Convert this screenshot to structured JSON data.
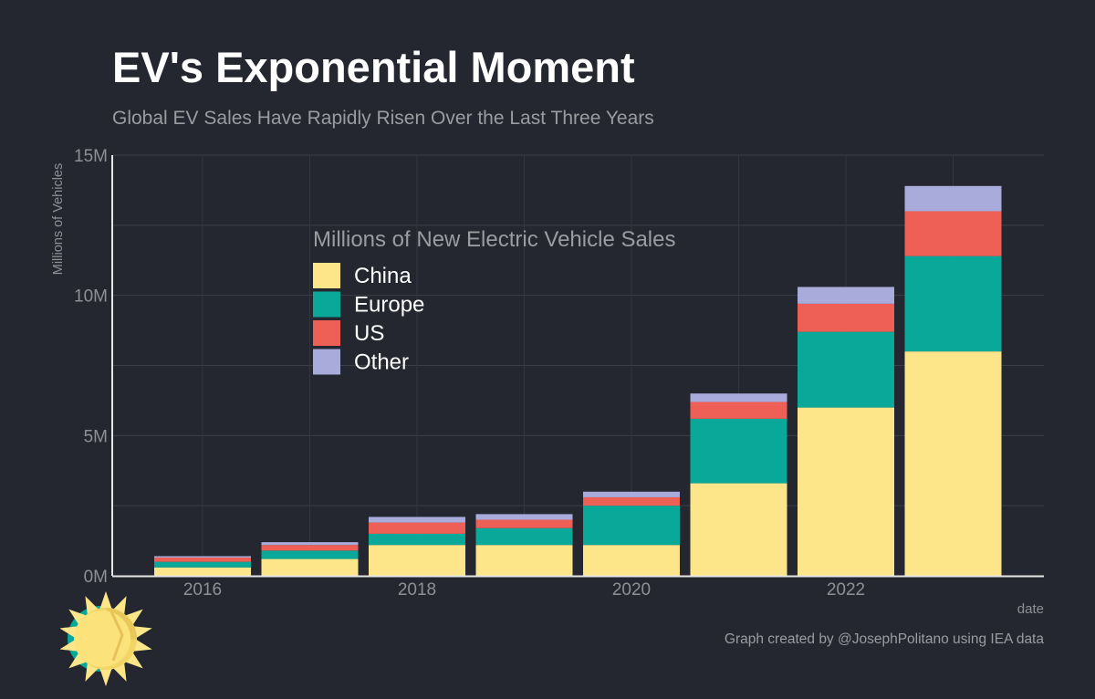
{
  "header": {
    "title": "EV's Exponential Moment",
    "subtitle": "Global EV Sales Have Rapidly Risen Over the Last Three Years"
  },
  "footer": {
    "credit": "Graph created by @JosephPolitano using IEA data"
  },
  "chart_data": {
    "type": "bar",
    "stacked": true,
    "title": "EV's Exponential Moment",
    "subtitle": "Global EV Sales Have Rapidly Risen Over the Last Three Years",
    "xlabel": "date",
    "ylabel": "Millions of Vehicles",
    "legend_title": "Millions of New Electric Vehicle Sales",
    "legend_placement": "upper-left inside plot",
    "grid": true,
    "categories": [
      "2016",
      "2017",
      "2018",
      "2019",
      "2020",
      "2021",
      "2022",
      "2023"
    ],
    "x_ticks": [
      {
        "label": "2016",
        "value": "2016"
      },
      {
        "label": "2018",
        "value": "2018"
      },
      {
        "label": "2020",
        "value": "2020"
      },
      {
        "label": "2022",
        "value": "2022"
      }
    ],
    "y_ticks": [
      {
        "label": "0M",
        "value": 0
      },
      {
        "label": "5M",
        "value": 5
      },
      {
        "label": "10M",
        "value": 10
      },
      {
        "label": "15M",
        "value": 15
      }
    ],
    "ylim": [
      0,
      15
    ],
    "series": [
      {
        "name": "China",
        "color": "#fde68a",
        "values": [
          0.3,
          0.6,
          1.1,
          1.1,
          1.1,
          3.3,
          6.0,
          8.0
        ]
      },
      {
        "name": "Europe",
        "color": "#0aa899",
        "values": [
          0.2,
          0.3,
          0.4,
          0.6,
          1.4,
          2.3,
          2.7,
          3.4
        ]
      },
      {
        "name": "US",
        "color": "#ee5f55",
        "values": [
          0.15,
          0.2,
          0.4,
          0.3,
          0.3,
          0.6,
          1.0,
          1.6
        ]
      },
      {
        "name": "Other",
        "color": "#a9abdb",
        "values": [
          0.05,
          0.1,
          0.2,
          0.2,
          0.2,
          0.3,
          0.6,
          0.9
        ]
      }
    ]
  }
}
